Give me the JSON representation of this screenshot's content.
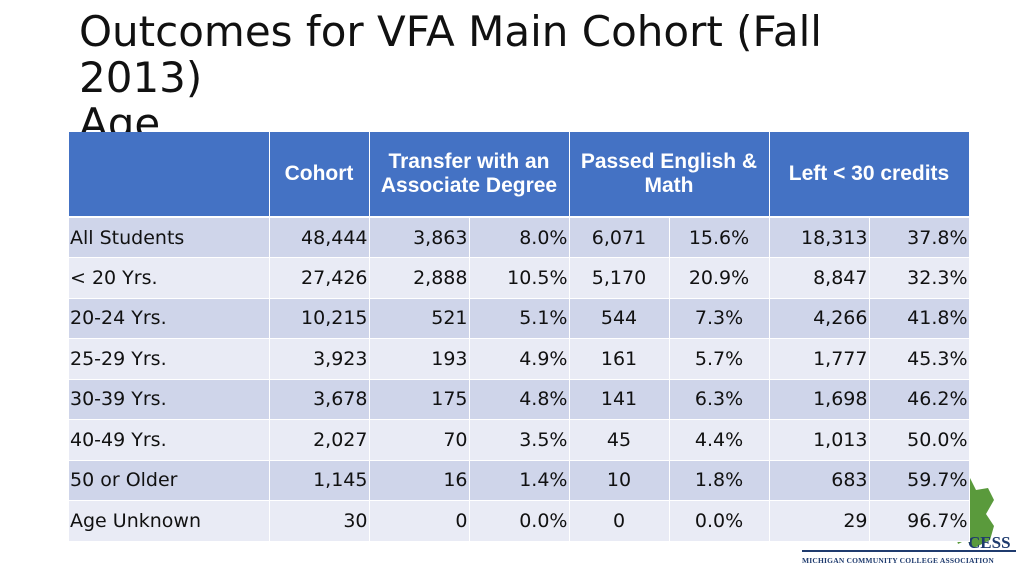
{
  "slide": {
    "title_lines": [
      "Outcomes for VFA Main Cohort (Fall",
      "2013)",
      "Age"
    ]
  },
  "table": {
    "headers": {
      "blank": "",
      "cohort": "Cohort",
      "transfer": "Transfer with an Associate Degree",
      "passed": "Passed English & Math",
      "left": "Left < 30 credits"
    },
    "rows": [
      {
        "label": "All Students",
        "cohort": "48,444",
        "transfer_n": "3,863",
        "transfer_pct": "8.0%",
        "passed_n": "6,071",
        "passed_pct": "15.6%",
        "left_n": "18,313",
        "left_pct": "37.8%"
      },
      {
        "label": "< 20 Yrs.",
        "cohort": "27,426",
        "transfer_n": "2,888",
        "transfer_pct": "10.5%",
        "passed_n": "5,170",
        "passed_pct": "20.9%",
        "left_n": "8,847",
        "left_pct": "32.3%"
      },
      {
        "label": "20-24 Yrs.",
        "cohort": "10,215",
        "transfer_n": "521",
        "transfer_pct": "5.1%",
        "passed_n": "544",
        "passed_pct": "7.3%",
        "left_n": "4,266",
        "left_pct": "41.8%"
      },
      {
        "label": "25-29 Yrs.",
        "cohort": "3,923",
        "transfer_n": "193",
        "transfer_pct": "4.9%",
        "passed_n": "161",
        "passed_pct": "5.7%",
        "left_n": "1,777",
        "left_pct": "45.3%"
      },
      {
        "label": "30-39 Yrs.",
        "cohort": "3,678",
        "transfer_n": "175",
        "transfer_pct": "4.8%",
        "passed_n": "141",
        "passed_pct": "6.3%",
        "left_n": "1,698",
        "left_pct": "46.2%"
      },
      {
        "label": "40-49 Yrs.",
        "cohort": "2,027",
        "transfer_n": "70",
        "transfer_pct": "3.5%",
        "passed_n": "45",
        "passed_pct": "4.4%",
        "left_n": "1,013",
        "left_pct": "50.0%"
      },
      {
        "label": "50 or Older",
        "cohort": "1,145",
        "transfer_n": "16",
        "transfer_pct": "1.4%",
        "passed_n": "10",
        "passed_pct": "1.8%",
        "left_n": "683",
        "left_pct": "59.7%"
      },
      {
        "label": "Age Unknown",
        "cohort": "30",
        "transfer_n": "0",
        "transfer_pct": "0.0%",
        "passed_n": "0",
        "passed_pct": "0.0%",
        "left_n": "29",
        "left_pct": "96.7%"
      }
    ]
  },
  "logo": {
    "text": "MICHIGAN COMMUNITY COLLEGE ASSOCIATION",
    "partial_word": "CESS",
    "icon": "michigan-map-icon"
  },
  "colors": {
    "header_bg": "#4472c4",
    "row_odd": "#cfd5ea",
    "row_even": "#e9ebf5",
    "logo_green": "#5a9a3c",
    "logo_navy": "#1f3b6e"
  }
}
